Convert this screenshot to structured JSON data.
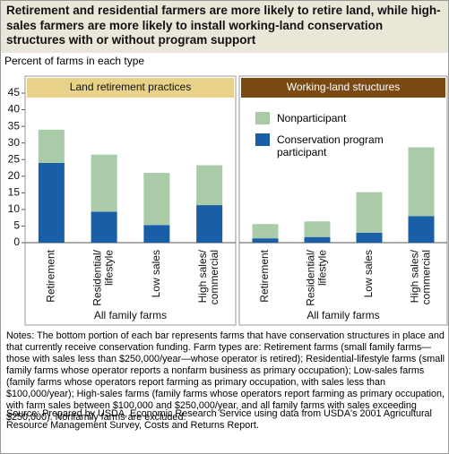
{
  "title": "Retirement and residential farmers are more likely to retire land, while high-sales farmers are more likely to install working-land conservation structures with or without program support",
  "ylabel": "Percent of farms in each type",
  "chart_data": [
    {
      "type": "bar",
      "stacked": true,
      "title": "Land retirement practices",
      "xlabel": "All family farms",
      "categories": [
        "Retirement",
        "Residential/ lifestyle",
        "Low sales",
        "High sales/ commercial"
      ],
      "ylim": [
        0,
        45
      ],
      "yticks": [
        0,
        5,
        10,
        15,
        20,
        25,
        30,
        35,
        40,
        45
      ],
      "series": [
        {
          "color": "#a9cba8",
          "values": [
            10,
            17.2,
            15.7,
            12
          ]
        },
        {
          "color": "#1a5ea8",
          "values": [
            24,
            9.3,
            5.3,
            11.3
          ]
        }
      ]
    },
    {
      "type": "bar",
      "stacked": true,
      "title": "Working-land structures",
      "xlabel": "All family farms",
      "categories": [
        "Retirement",
        "Residential/ lifestyle",
        "Low sales",
        "High sales/ commercial"
      ],
      "ylim": [
        0,
        45
      ],
      "legend": "upper left",
      "series": [
        {
          "name": "Nonparticipant",
          "color": "#a9cba8",
          "values": [
            4.3,
            4.7,
            12.2,
            20.7
          ]
        },
        {
          "name": "Conservation program participant",
          "color": "#1a5ea8",
          "values": [
            1.3,
            1.7,
            3,
            8
          ]
        }
      ]
    }
  ],
  "notes": "Notes: The bottom portion of each bar represents farms that have conservation structures in place and that currently receive conservation funding. Farm types are: Retirement farms (small family farms—those with sales less than $250,000/year—whose operator is retired); Residential-lifestyle farms (small family farms whose operator reports a nonfarm business as primary occupation); Low-sales farms (family farms whose operators report farming as primary occupation, with sales less than $100,000/year); High-sales farms (family farms whose operators report farming as primary occupation, with farm sales between $100,000 and $250,000/year, and all family farms with sales exceeding $250,000). Nonfamily farms are excluded.",
  "source": "Source: Prepared by USDA, Economic Research Service using data from USDA's 2001 Agricultural Resource Management Survey, Costs and Returns Report."
}
